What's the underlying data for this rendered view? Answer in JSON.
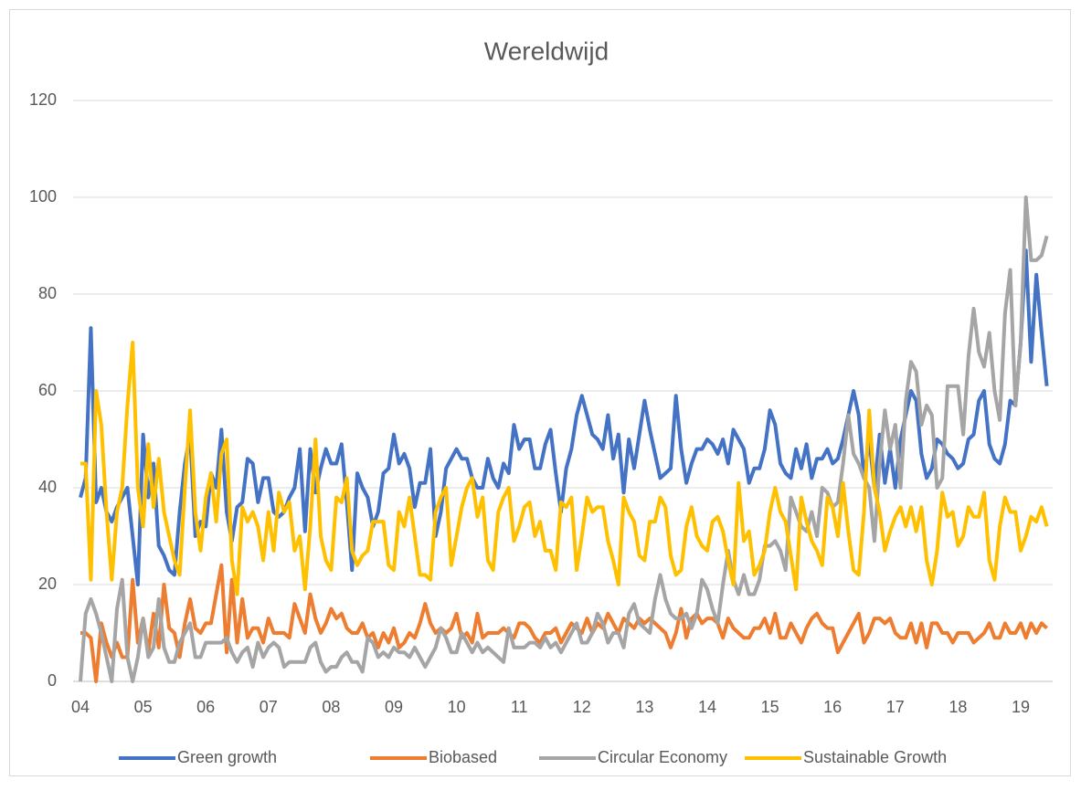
{
  "chart_data": {
    "type": "line",
    "title": "Wereldwijd",
    "categories": [
      "04",
      null,
      null,
      null,
      null,
      null,
      null,
      null,
      null,
      null,
      null,
      null,
      "05",
      null,
      null,
      null,
      null,
      null,
      null,
      null,
      null,
      null,
      null,
      null,
      "06",
      null,
      null,
      null,
      null,
      null,
      null,
      null,
      null,
      null,
      null,
      null,
      "07",
      null,
      null,
      null,
      null,
      null,
      null,
      null,
      null,
      null,
      null,
      null,
      "08",
      null,
      null,
      null,
      null,
      null,
      null,
      null,
      null,
      null,
      null,
      null,
      "09",
      null,
      null,
      null,
      null,
      null,
      null,
      null,
      null,
      null,
      null,
      null,
      "10",
      null,
      null,
      null,
      null,
      null,
      null,
      null,
      null,
      null,
      null,
      null,
      "11",
      null,
      null,
      null,
      null,
      null,
      null,
      null,
      null,
      null,
      null,
      null,
      "12",
      null,
      null,
      null,
      null,
      null,
      null,
      null,
      null,
      null,
      null,
      null,
      "13",
      null,
      null,
      null,
      null,
      null,
      null,
      null,
      null,
      null,
      null,
      null,
      "14",
      null,
      null,
      null,
      null,
      null,
      null,
      null,
      null,
      null,
      null,
      null,
      "15",
      null,
      null,
      null,
      null,
      null,
      null,
      null,
      null,
      null,
      null,
      null,
      "16",
      null,
      null,
      null,
      null,
      null,
      null,
      null,
      null,
      null,
      null,
      null,
      "17",
      null,
      null,
      null,
      null,
      null,
      null,
      null,
      null,
      null,
      null,
      null,
      "18",
      null,
      null,
      null,
      null,
      null,
      null,
      null,
      null,
      null,
      null,
      null,
      "19",
      null,
      null,
      null,
      null,
      null
    ],
    "series": [
      {
        "name": "Green growth",
        "color": "#4472c4",
        "values": [
          38,
          42,
          73,
          37,
          40,
          35,
          33,
          36,
          38,
          40,
          30,
          20,
          51,
          38,
          45,
          28,
          26,
          23,
          22,
          35,
          45,
          51,
          30,
          33,
          32,
          43,
          40,
          52,
          35,
          29,
          36,
          37,
          46,
          45,
          37,
          42,
          42,
          35,
          34,
          35,
          38,
          40,
          48,
          31,
          48,
          39,
          44,
          48,
          45,
          45,
          49,
          37,
          23,
          43,
          40,
          38,
          32,
          35,
          43,
          44,
          51,
          45,
          47,
          44,
          36,
          41,
          41,
          48,
          30,
          35,
          44,
          46,
          48,
          46,
          46,
          42,
          40,
          40,
          46,
          42,
          40,
          45,
          43,
          53,
          48,
          50,
          50,
          44,
          44,
          49,
          52,
          43,
          35,
          44,
          48,
          55,
          59,
          55,
          51,
          50,
          48,
          55,
          46,
          51,
          39,
          50,
          44,
          51,
          58,
          52,
          47,
          42,
          43,
          44,
          59,
          48,
          41,
          45,
          48,
          48,
          50,
          49,
          47,
          50,
          45,
          52,
          50,
          48,
          41,
          44,
          44,
          48,
          56,
          53,
          45,
          43,
          42,
          48,
          44,
          49,
          42,
          46,
          46,
          48,
          45,
          46,
          50,
          55,
          60,
          55,
          42,
          50,
          40,
          51,
          41,
          48,
          40,
          50,
          55,
          60,
          58,
          47,
          42,
          44,
          50,
          49,
          47,
          46,
          44,
          45,
          50,
          51,
          58,
          60,
          49,
          46,
          45,
          49,
          58,
          57,
          70,
          89,
          66,
          84,
          72,
          61
        ]
      },
      {
        "name": "Biobased",
        "color": "#ed7d31",
        "values": [
          10,
          10,
          9,
          0,
          12,
          8,
          5,
          8,
          5,
          5,
          21,
          8,
          13,
          6,
          14,
          7,
          20,
          11,
          10,
          5,
          12,
          17,
          11,
          10,
          12,
          12,
          18,
          24,
          6,
          21,
          8,
          17,
          9,
          11,
          11,
          8,
          13,
          10,
          10,
          10,
          9,
          16,
          13,
          10,
          18,
          13,
          10,
          12,
          15,
          13,
          14,
          11,
          10,
          10,
          12,
          9,
          10,
          7,
          10,
          8,
          11,
          7,
          8,
          10,
          9,
          12,
          16,
          12,
          10,
          11,
          10,
          11,
          14,
          9,
          10,
          8,
          14,
          9,
          10,
          10,
          10,
          11,
          10,
          9,
          12,
          12,
          11,
          9,
          8,
          10,
          10,
          11,
          8,
          10,
          12,
          11,
          10,
          13,
          10,
          12,
          11,
          14,
          12,
          10,
          13,
          12,
          11,
          13,
          12,
          13,
          12,
          11,
          10,
          7,
          10,
          15,
          9,
          13,
          14,
          12,
          13,
          13,
          12,
          9,
          13,
          11,
          10,
          9,
          9,
          11,
          11,
          13,
          10,
          14,
          9,
          9,
          12,
          10,
          8,
          11,
          13,
          14,
          12,
          11,
          11,
          6,
          8,
          10,
          12,
          14,
          8,
          10,
          13,
          13,
          12,
          13,
          10,
          9,
          9,
          12,
          8,
          12,
          7,
          12,
          12,
          10,
          10,
          8,
          10,
          10,
          10,
          8,
          9,
          10,
          12,
          9,
          9,
          12,
          10,
          10,
          12,
          9,
          12,
          10,
          12,
          11
        ]
      },
      {
        "name": "Circular Economy",
        "color": "#a5a5a5",
        "values": [
          0,
          14,
          17,
          14,
          10,
          5,
          0,
          15,
          21,
          5,
          0,
          5,
          13,
          5,
          7,
          17,
          7,
          4,
          4,
          8,
          10,
          12,
          5,
          5,
          8,
          8,
          8,
          8,
          9,
          6,
          4,
          6,
          7,
          3,
          8,
          5,
          7,
          8,
          7,
          3,
          4,
          4,
          4,
          4,
          7,
          8,
          4,
          2,
          3,
          3,
          5,
          6,
          4,
          4,
          2,
          9,
          8,
          5,
          6,
          5,
          7,
          6,
          6,
          5,
          7,
          5,
          3,
          5,
          7,
          11,
          9,
          6,
          6,
          10,
          8,
          6,
          8,
          6,
          7,
          6,
          5,
          4,
          11,
          7,
          7,
          7,
          8,
          8,
          7,
          9,
          7,
          8,
          6,
          8,
          10,
          12,
          8,
          8,
          10,
          14,
          12,
          8,
          10,
          10,
          7,
          14,
          16,
          12,
          11,
          10,
          17,
          22,
          17,
          14,
          13,
          13,
          14,
          11,
          14,
          21,
          19,
          15,
          12,
          20,
          27,
          21,
          18,
          22,
          18,
          18,
          21,
          28,
          28,
          29,
          27,
          23,
          38,
          35,
          32,
          31,
          35,
          30,
          40,
          39,
          36,
          37,
          45,
          55,
          47,
          45,
          42,
          40,
          29,
          45,
          56,
          48,
          53,
          40,
          58,
          66,
          64,
          53,
          57,
          55,
          40,
          42,
          61,
          61,
          61,
          51,
          67,
          77,
          68,
          65,
          72,
          60,
          54,
          76,
          85,
          57,
          70,
          100,
          87,
          87,
          88,
          92
        ]
      },
      {
        "name": "Sustainable Growth",
        "color": "#ffc000",
        "values": [
          45,
          45,
          21,
          60,
          53,
          35,
          21,
          35,
          40,
          57,
          70,
          40,
          32,
          49,
          36,
          46,
          35,
          30,
          25,
          22,
          40,
          56,
          35,
          27,
          38,
          43,
          33,
          47,
          50,
          25,
          18,
          36,
          33,
          35,
          32,
          25,
          35,
          27,
          39,
          35,
          37,
          27,
          30,
          19,
          32,
          50,
          30,
          25,
          23,
          38,
          37,
          42,
          27,
          24,
          26,
          27,
          33,
          33,
          33,
          24,
          23,
          35,
          32,
          38,
          30,
          22,
          22,
          21,
          35,
          38,
          40,
          24,
          30,
          36,
          40,
          42,
          34,
          38,
          25,
          23,
          35,
          38,
          40,
          29,
          32,
          36,
          37,
          30,
          33,
          27,
          27,
          23,
          37,
          36,
          38,
          23,
          30,
          38,
          35,
          36,
          36,
          29,
          25,
          20,
          38,
          35,
          33,
          26,
          25,
          33,
          33,
          38,
          36,
          26,
          22,
          23,
          32,
          36,
          30,
          28,
          27,
          33,
          34,
          31,
          25,
          20,
          41,
          29,
          31,
          22,
          24,
          27,
          35,
          40,
          35,
          33,
          26,
          19,
          38,
          33,
          29,
          27,
          24,
          38,
          36,
          30,
          41,
          31,
          23,
          22,
          35,
          56,
          40,
          35,
          27,
          31,
          34,
          36,
          32,
          36,
          31,
          36,
          25,
          20,
          27,
          39,
          34,
          35,
          28,
          30,
          36,
          34,
          34,
          39,
          25,
          21,
          32,
          38,
          35,
          35,
          27,
          30,
          34,
          33,
          36,
          32
        ]
      }
    ],
    "ylim": [
      0,
      120
    ],
    "yticks": [
      0,
      20,
      40,
      60,
      80,
      100,
      120
    ],
    "grid": true,
    "legend": "bottom"
  }
}
